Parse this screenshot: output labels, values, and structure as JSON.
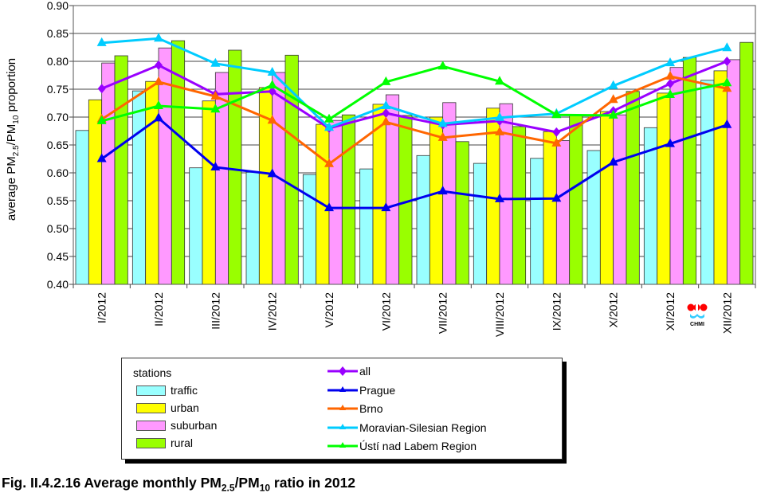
{
  "chart_data": {
    "type": "bar+line",
    "title": "",
    "caption": {
      "prefix": "Fig. II.4.2.16  Average monthly PM",
      "sub1": "2.5",
      "mid": "/PM",
      "sub2": "10",
      "suffix": " ratio in 2012"
    },
    "ylabel": {
      "prefix": "average PM",
      "sub1": "2.5",
      "mid": "/PM",
      "sub2": "10",
      "suffix": " proportion"
    },
    "xlabel": "",
    "ylim": [
      0.4,
      0.9
    ],
    "yticks": [
      "0.40",
      "0.45",
      "0.50",
      "0.55",
      "0.60",
      "0.65",
      "0.70",
      "0.75",
      "0.80",
      "0.85",
      "0.90"
    ],
    "grid": true,
    "categories": [
      "I/2012",
      "II/2012",
      "III/2012",
      "IV/2012",
      "V/2012",
      "VI/2012",
      "VII/2012",
      "VIII/2012",
      "IX/2012",
      "X/2012",
      "XI/2012",
      "XII/2012"
    ],
    "bar_series": [
      {
        "name": "traffic",
        "color": "#99ffff",
        "values": [
          0.676,
          0.747,
          0.609,
          0.601,
          0.597,
          0.607,
          0.631,
          0.617,
          0.626,
          0.64,
          0.681,
          0.766
        ]
      },
      {
        "name": "urban",
        "color": "#ffff00",
        "values": [
          0.731,
          0.764,
          0.729,
          0.753,
          0.687,
          0.723,
          0.7,
          0.716,
          0.674,
          0.71,
          0.743,
          0.783
        ]
      },
      {
        "name": "suburban",
        "color": "#ff99ff",
        "values": [
          0.797,
          0.824,
          0.78,
          0.78,
          0.694,
          0.74,
          0.726,
          0.724,
          0.658,
          0.704,
          0.789,
          0.803
        ]
      },
      {
        "name": "rural",
        "color": "#99ff00",
        "values": [
          0.81,
          0.837,
          0.82,
          0.811,
          0.704,
          0.703,
          0.656,
          0.683,
          0.703,
          0.746,
          0.807,
          0.834
        ]
      }
    ],
    "line_series": [
      {
        "name": "all",
        "color": "#9900ff",
        "marker": "diamond",
        "values": [
          0.751,
          0.793,
          0.741,
          0.746,
          0.68,
          0.707,
          0.686,
          0.693,
          0.673,
          0.711,
          0.76,
          0.8
        ]
      },
      {
        "name": "Prague",
        "color": "#0000ee",
        "marker": "triangle",
        "values": [
          0.625,
          0.698,
          0.61,
          0.598,
          0.537,
          0.537,
          0.567,
          0.553,
          0.554,
          0.619,
          0.652,
          0.686
        ]
      },
      {
        "name": "Brno",
        "color": "#ff6600",
        "marker": "triangle",
        "values": [
          0.696,
          0.763,
          0.737,
          0.694,
          0.616,
          0.691,
          0.663,
          0.673,
          0.653,
          0.731,
          0.773,
          0.751
        ]
      },
      {
        "name": "Moravian-Silesian Region",
        "color": "#00ccff",
        "marker": "triangle",
        "values": [
          0.833,
          0.841,
          0.796,
          0.78,
          0.681,
          0.72,
          0.688,
          0.699,
          0.706,
          0.756,
          0.797,
          0.824
        ]
      },
      {
        "name": "Ústí nad Labem Region",
        "color": "#00ff00",
        "marker": "triangle",
        "values": [
          0.693,
          0.72,
          0.714,
          0.757,
          0.696,
          0.763,
          0.791,
          0.764,
          0.704,
          0.703,
          0.74,
          0.761
        ]
      }
    ],
    "legend": {
      "placement": "bottom",
      "bar_title": "stations"
    }
  },
  "logo": {
    "text": "CHMI"
  }
}
